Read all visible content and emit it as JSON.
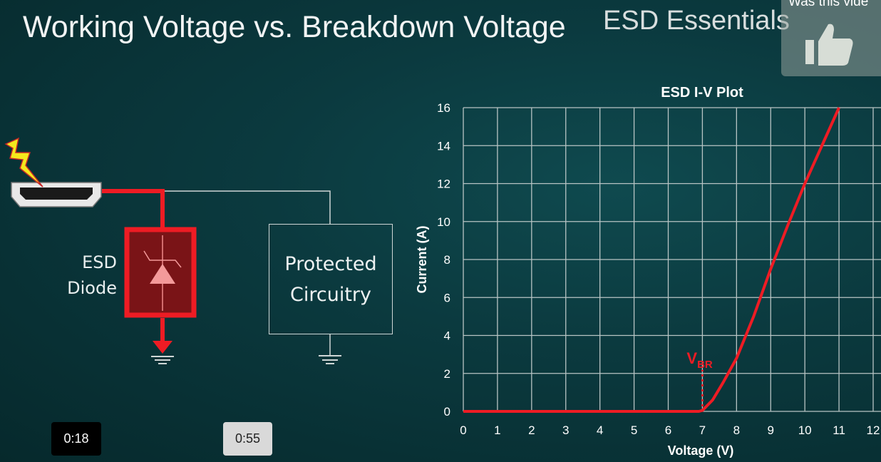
{
  "slide": {
    "title": "Working Voltage vs. Breakdown Voltage",
    "brand": "ESD Essentials",
    "diode_label_line1": "ESD",
    "diode_label_line2": "Diode",
    "protected_line1": "Protected",
    "protected_line2": "Circuitry",
    "vbr_label_main": "V",
    "vbr_label_sub": "BR"
  },
  "player": {
    "feedback_prompt": "Was this vide",
    "feedback_icon": "thumbs-up-icon",
    "current_time": "0:18",
    "duration": "0:55"
  },
  "colors": {
    "accent": "#ee1c24",
    "background": "#0b3a3f",
    "bolt": "#f4e81c"
  },
  "chart_data": {
    "type": "line",
    "title": "ESD I-V Plot",
    "xlabel": "Voltage (V)",
    "ylabel": "Current (A)",
    "xlim": [
      0,
      12
    ],
    "ylim": [
      0,
      16
    ],
    "xticks": [
      "0",
      "1",
      "2",
      "3",
      "4",
      "5",
      "6",
      "7",
      "8",
      "9",
      "10",
      "11",
      "12"
    ],
    "yticks": [
      "0",
      "2",
      "4",
      "6",
      "8",
      "10",
      "12",
      "14",
      "16"
    ],
    "grid": true,
    "series": [
      {
        "color": "#ee1c24",
        "x": [
          0,
          6.9,
          7.0,
          7.3,
          7.6,
          8.0,
          8.5,
          9.0,
          9.5,
          10.0,
          10.5,
          11.0
        ],
        "y": [
          0,
          0,
          0.05,
          0.6,
          1.5,
          2.8,
          5.0,
          7.5,
          9.8,
          12.0,
          14.0,
          16.0
        ]
      }
    ],
    "annotations": [
      {
        "text": "VBR",
        "x": 7,
        "y": 2,
        "style": "dotted vertical marker"
      }
    ]
  }
}
